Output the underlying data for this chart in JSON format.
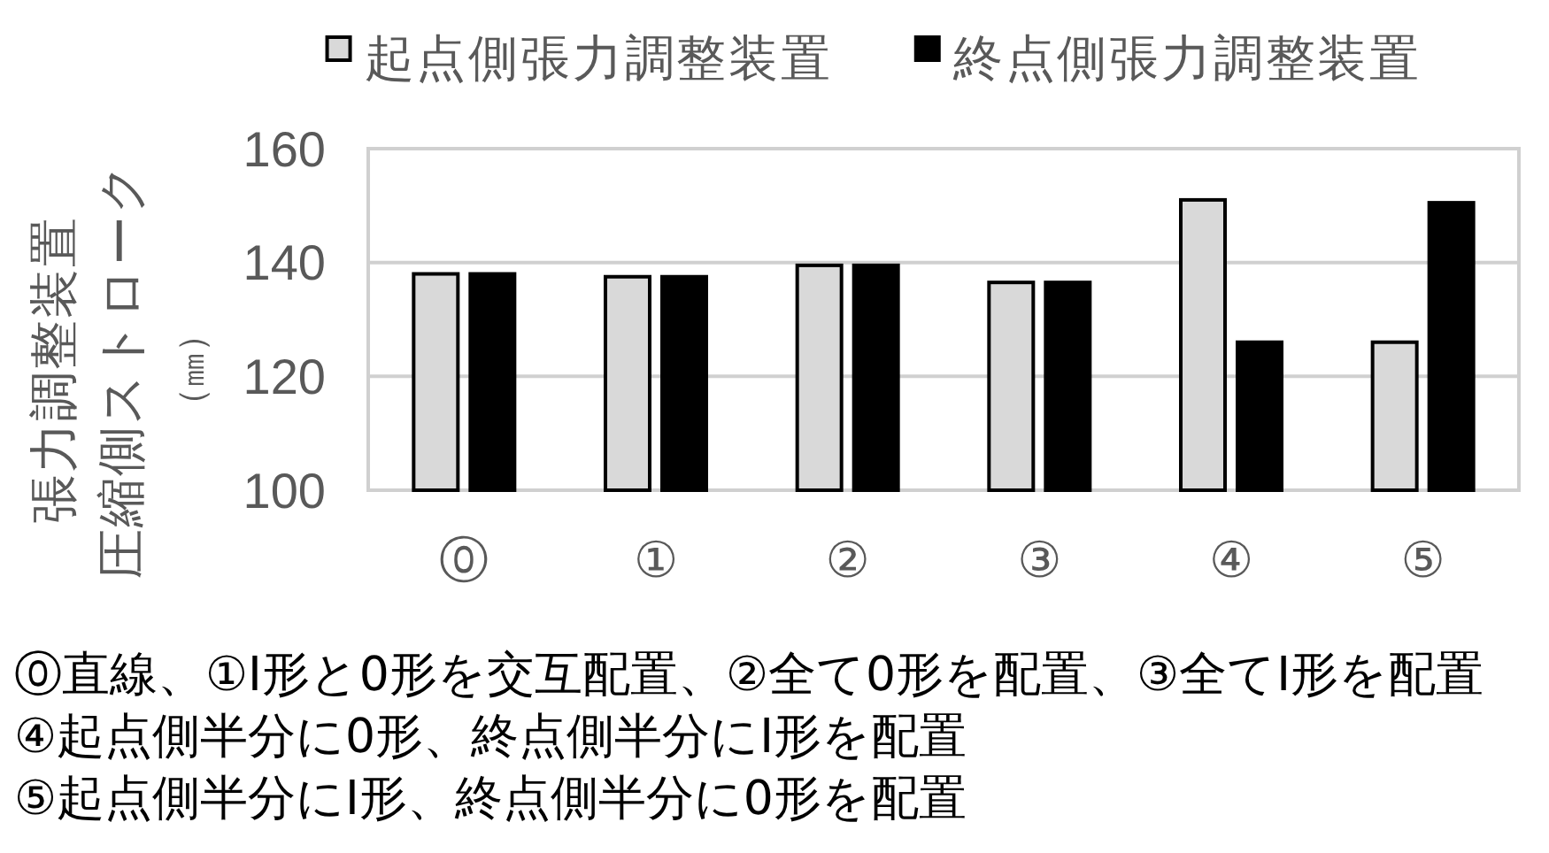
{
  "chart_data": {
    "type": "bar",
    "categories": [
      "⓪",
      "①",
      "②",
      "③",
      "④",
      "⑤"
    ],
    "series": [
      {
        "name": "起点側張力調整装置",
        "color": "#d9d9d9",
        "values": [
          138,
          137.5,
          139.5,
          136.5,
          151,
          126
        ]
      },
      {
        "name": "終点側張力調整装置",
        "color": "#000000",
        "values": [
          138,
          137.5,
          139.5,
          136.5,
          126,
          150.5
        ]
      }
    ],
    "ylabel": "張力調整装置圧縮側ストローク（㎜）",
    "ylim": [
      100,
      160
    ],
    "yticks": [
      100,
      120,
      140,
      160
    ],
    "grid": "y",
    "legend": "top",
    "annotations": [
      "⓪直線、①I形と0形を交互配置、②全て0形を配置、③全てI形を配置",
      "④起点側半分に0形、終点側半分にI形を配置",
      "⑤起点側半分にI形、終点側半分に0形を配置"
    ]
  }
}
